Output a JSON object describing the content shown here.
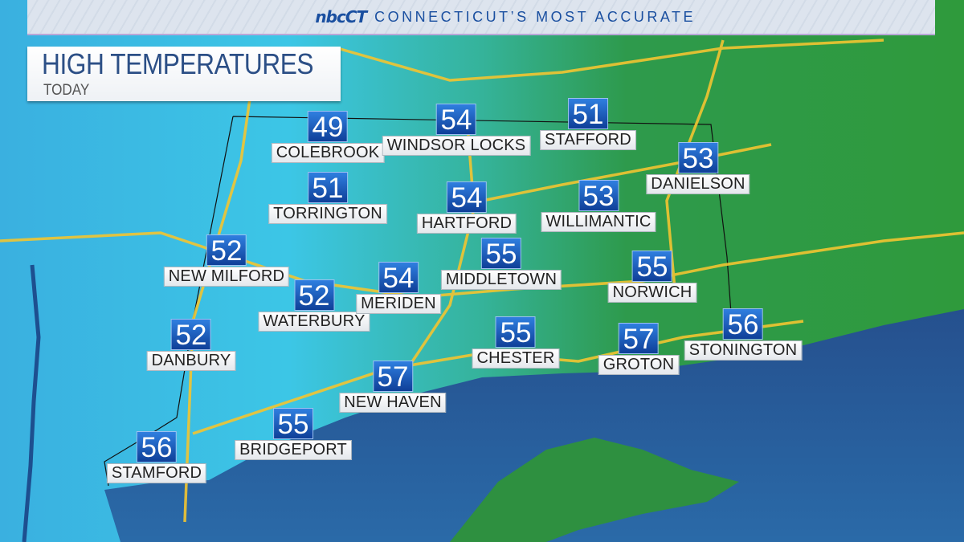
{
  "header": {
    "logo": "nbcCT",
    "tagline": "CONNECTICUT’S MOST ACCURATE"
  },
  "title": {
    "main": "HIGH TEMPERATURES",
    "sub": "TODAY"
  },
  "colors": {
    "temp_box": "#1f5fc0",
    "land_warm": "#2e9a3e",
    "land_cool": "#3cc0e8",
    "water": "#1b3f7a",
    "roads": "#f2c531"
  },
  "cities": [
    {
      "name": "COLEBROOK",
      "temp": "49"
    },
    {
      "name": "WINDSOR LOCKS",
      "temp": "54"
    },
    {
      "name": "STAFFORD",
      "temp": "51"
    },
    {
      "name": "DANIELSON",
      "temp": "53"
    },
    {
      "name": "TORRINGTON",
      "temp": "51"
    },
    {
      "name": "HARTFORD",
      "temp": "54"
    },
    {
      "name": "WILLIMANTIC",
      "temp": "53"
    },
    {
      "name": "NEW MILFORD",
      "temp": "52"
    },
    {
      "name": "WATERBURY",
      "temp": "52"
    },
    {
      "name": "MERIDEN",
      "temp": "54"
    },
    {
      "name": "MIDDLETOWN",
      "temp": "55"
    },
    {
      "name": "NORWICH",
      "temp": "55"
    },
    {
      "name": "DANBURY",
      "temp": "52"
    },
    {
      "name": "CHESTER",
      "temp": "55"
    },
    {
      "name": "GROTON",
      "temp": "57"
    },
    {
      "name": "STONINGTON",
      "temp": "56"
    },
    {
      "name": "NEW HAVEN",
      "temp": "57"
    },
    {
      "name": "BRIDGEPORT",
      "temp": "55"
    },
    {
      "name": "STAMFORD",
      "temp": "56"
    }
  ]
}
